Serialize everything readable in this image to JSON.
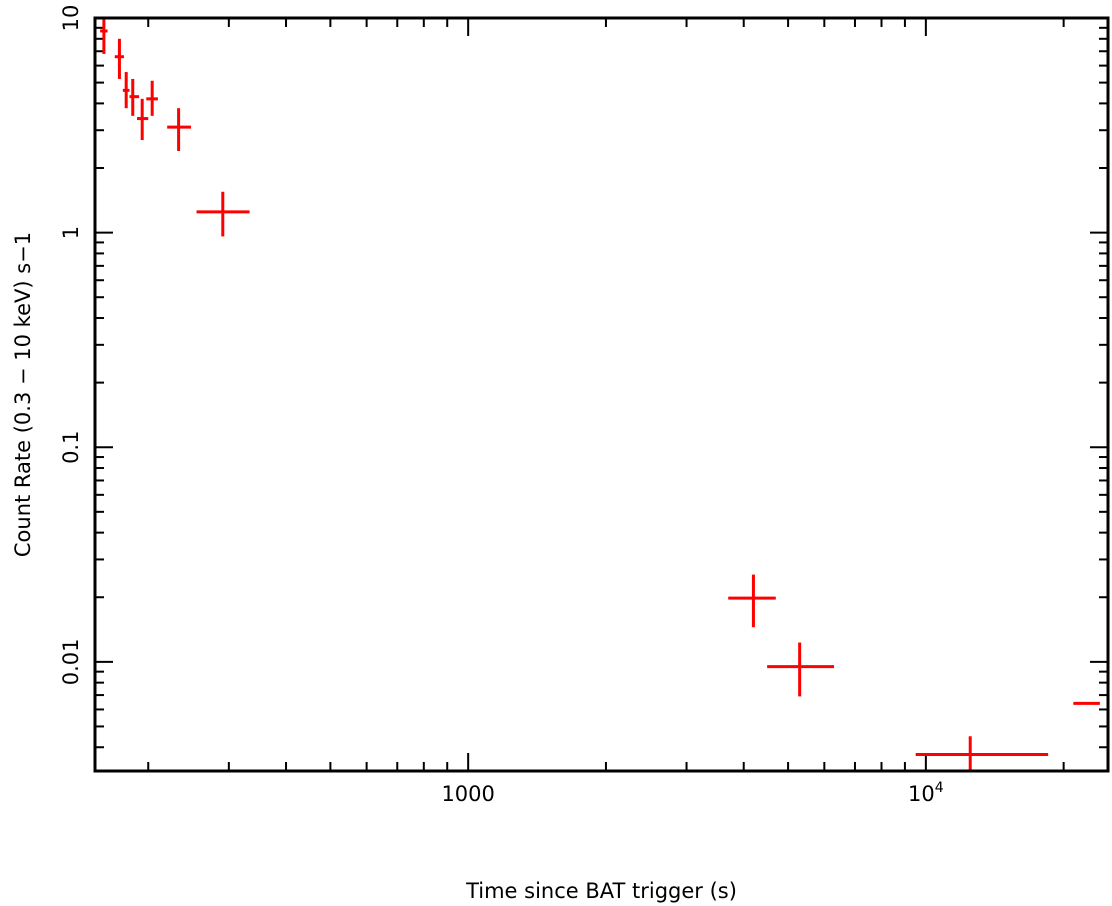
{
  "chart_data": {
    "type": "scatter",
    "title": "",
    "xlabel": "Time since BAT trigger (s)",
    "ylabel": "Count Rate (0.3 − 10 keV) s−1",
    "xscale": "log",
    "yscale": "log",
    "xlim": [
      153,
      25000
    ],
    "ylim": [
      0.0031,
      10
    ],
    "grid": false,
    "legend": "none",
    "x_tick_labels": [
      {
        "value": 1000,
        "base": "1000",
        "exp": ""
      },
      {
        "value": 10000,
        "base": "10",
        "exp": "4"
      }
    ],
    "y_tick_labels": [
      {
        "value": 10,
        "label": "10"
      },
      {
        "value": 1,
        "label": "1"
      },
      {
        "value": 0.1,
        "label": "0.1"
      },
      {
        "value": 0.01,
        "label": "0.01"
      }
    ],
    "series": [
      {
        "color": "#ff0000",
        "points": [
          {
            "x": 160,
            "x_lo": 157,
            "x_hi": 163,
            "y": 8.7,
            "y_lo": 6.8,
            "y_hi": 10.3
          },
          {
            "x": 173,
            "x_lo": 169,
            "x_hi": 177,
            "y": 6.6,
            "y_lo": 5.2,
            "y_hi": 8.0
          },
          {
            "x": 179,
            "x_lo": 176,
            "x_hi": 182,
            "y": 4.6,
            "y_lo": 3.8,
            "y_hi": 5.6
          },
          {
            "x": 185,
            "x_lo": 182,
            "x_hi": 191,
            "y": 4.3,
            "y_lo": 3.5,
            "y_hi": 5.2
          },
          {
            "x": 194,
            "x_lo": 189,
            "x_hi": 200,
            "y": 3.4,
            "y_lo": 2.7,
            "y_hi": 4.2
          },
          {
            "x": 204,
            "x_lo": 198,
            "x_hi": 210,
            "y": 4.2,
            "y_lo": 3.5,
            "y_hi": 5.1
          },
          {
            "x": 233,
            "x_lo": 220,
            "x_hi": 248,
            "y": 3.1,
            "y_lo": 2.4,
            "y_hi": 3.8
          },
          {
            "x": 291,
            "x_lo": 255,
            "x_hi": 333,
            "y": 1.25,
            "y_lo": 0.96,
            "y_hi": 1.55
          },
          {
            "x": 4200,
            "x_lo": 3700,
            "x_hi": 4700,
            "y": 0.0198,
            "y_lo": 0.0145,
            "y_hi": 0.0255
          },
          {
            "x": 5300,
            "x_lo": 4500,
            "x_hi": 6300,
            "y": 0.0095,
            "y_lo": 0.0069,
            "y_hi": 0.0123
          },
          {
            "x": 12500,
            "x_lo": 9500,
            "x_hi": 18500,
            "y": 0.0037,
            "y_lo": 0.0031,
            "y_hi": 0.0045
          },
          {
            "x": 22500,
            "x_lo": 21000,
            "x_hi": 24000,
            "y": 0.0064,
            "y_lo": 0.0064,
            "y_hi": 0.0064
          }
        ]
      }
    ]
  }
}
